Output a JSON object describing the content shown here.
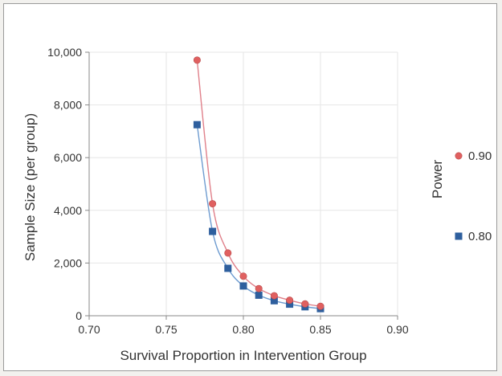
{
  "chart_data": {
    "type": "line",
    "title": "",
    "xlabel": "Survival Proportion in Intervention Group",
    "ylabel": "Sample Size (per group)",
    "xlim": [
      0.7,
      0.9
    ],
    "ylim": [
      0,
      10000
    ],
    "x_ticks": [
      "0.70",
      "0.75",
      "0.80",
      "0.85",
      "0.90"
    ],
    "y_ticks": [
      "0",
      "2,000",
      "4,000",
      "6,000",
      "8,000",
      "10,000"
    ],
    "grid": true,
    "legend": {
      "title": "Power",
      "position": "right"
    },
    "x": [
      0.77,
      0.78,
      0.79,
      0.8,
      0.81,
      0.82,
      0.83,
      0.84,
      0.85
    ],
    "series": [
      {
        "name": "0.90",
        "marker": "circle",
        "color": "#e06060",
        "line_color": "#e0808a",
        "values": [
          9700,
          4250,
          2380,
          1500,
          1030,
          760,
          590,
          450,
          360
        ]
      },
      {
        "name": "0.80",
        "marker": "square",
        "color": "#2e5f9e",
        "line_color": "#6d9bd0",
        "values": [
          7250,
          3200,
          1800,
          1130,
          780,
          570,
          440,
          340,
          270
        ]
      }
    ]
  }
}
